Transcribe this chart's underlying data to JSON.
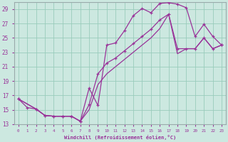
{
  "xlabel": "Windchill (Refroidissement éolien,°C)",
  "bg_color": "#cce8e0",
  "grid_color": "#99ccbb",
  "line_color": "#993399",
  "spine_color": "#99aaaa",
  "xlim": [
    -0.5,
    23.5
  ],
  "ylim": [
    13,
    30
  ],
  "yticks": [
    13,
    15,
    17,
    19,
    21,
    23,
    25,
    27,
    29
  ],
  "xticks": [
    0,
    1,
    2,
    3,
    4,
    5,
    6,
    7,
    8,
    9,
    10,
    11,
    12,
    13,
    14,
    15,
    16,
    17,
    18,
    19,
    20,
    21,
    22,
    23
  ],
  "series1_x": [
    0,
    1,
    2,
    3,
    4,
    5,
    6,
    7,
    8,
    9,
    10,
    11,
    12,
    13,
    14,
    15,
    16,
    17,
    18,
    19,
    20,
    21,
    22,
    23
  ],
  "series1_y": [
    16.5,
    15.3,
    15.1,
    14.2,
    14.1,
    14.1,
    14.1,
    13.4,
    18.0,
    15.6,
    24.0,
    24.3,
    26.0,
    28.1,
    29.1,
    28.5,
    29.8,
    29.9,
    29.7,
    29.2,
    25.2,
    26.9,
    25.2,
    24.0
  ],
  "series2_x": [
    0,
    2,
    3,
    4,
    5,
    6,
    7,
    8,
    9,
    10,
    11,
    12,
    13,
    14,
    15,
    16,
    17,
    18,
    19,
    20,
    21,
    22,
    23
  ],
  "series2_y": [
    16.5,
    15.1,
    14.2,
    14.1,
    14.1,
    14.1,
    13.4,
    15.7,
    20.0,
    21.5,
    22.2,
    23.2,
    24.2,
    25.2,
    26.2,
    27.5,
    28.3,
    23.5,
    23.5,
    23.5,
    25.0,
    23.5,
    24.0
  ],
  "series3_x": [
    0,
    2,
    3,
    4,
    5,
    6,
    7,
    8,
    9,
    10,
    11,
    12,
    13,
    14,
    15,
    16,
    17,
    18,
    19,
    20,
    21,
    22,
    23
  ],
  "series3_y": [
    16.5,
    15.1,
    14.2,
    14.1,
    14.1,
    14.1,
    13.4,
    15.0,
    18.5,
    20.0,
    21.0,
    22.0,
    23.0,
    24.0,
    25.0,
    26.3,
    28.3,
    22.8,
    23.5,
    23.5,
    25.0,
    23.5,
    24.0
  ]
}
